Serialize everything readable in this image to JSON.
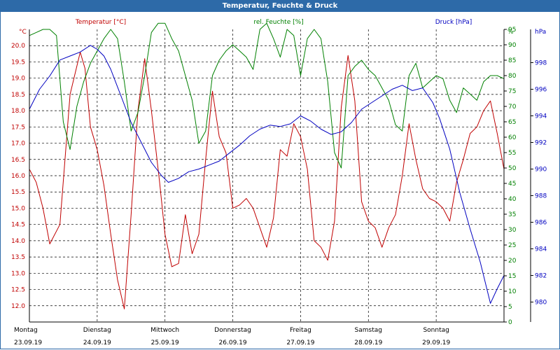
{
  "window": {
    "title": "Temperatur, Feuchte & Druck"
  },
  "colors": {
    "temperature": "#c00000",
    "humidity": "#008000",
    "pressure": "#0000c0",
    "grid": "#000000",
    "text": "#000000"
  },
  "chart_data": {
    "type": "line",
    "title": "Temperatur, Feuchte & Druck",
    "x": {
      "range": [
        0,
        7
      ],
      "ticks": [
        {
          "day": "Montag",
          "date": "23.09.19"
        },
        {
          "day": "Dienstag",
          "date": "24.09.19"
        },
        {
          "day": "Mittwoch",
          "date": "25.09.19"
        },
        {
          "day": "Donnerstag",
          "date": "26.09.19"
        },
        {
          "day": "Freitag",
          "date": "27.09.19"
        },
        {
          "day": "Samstag",
          "date": "28.09.19"
        },
        {
          "day": "Sonntag",
          "date": "29.09.19"
        }
      ]
    },
    "axes": {
      "left": {
        "label": "Temperatur [°C]",
        "unit": "°C",
        "range": [
          11.5,
          20.5
        ],
        "ticks": [
          "20.0",
          "19.5",
          "19.0",
          "18.5",
          "18.0",
          "17.5",
          "17.0",
          "16.5",
          "16.0",
          "15.5",
          "15.0",
          "14.5",
          "14.0",
          "13.5",
          "13.0",
          "12.5",
          "12.0"
        ]
      },
      "middle": {
        "label": "rel. Feuchte [%]",
        "unit": "%",
        "range": [
          0,
          95
        ],
        "ticks": [
          "95",
          "90",
          "85",
          "80",
          "75",
          "70",
          "65",
          "60",
          "55",
          "50",
          "45",
          "40",
          "35",
          "30",
          "25",
          "20",
          "15",
          "10",
          "5",
          "0"
        ]
      },
      "right": {
        "label": "Druck [hPa]",
        "unit": "hPa",
        "range": [
          978.5,
          1000.5
        ],
        "ticks": [
          "998",
          "996",
          "994",
          "992",
          "990",
          "988",
          "986",
          "984",
          "982",
          "980"
        ]
      }
    },
    "series": [
      {
        "name": "Temperatur",
        "axis": "left",
        "x": [
          0,
          0.1,
          0.2,
          0.3,
          0.45,
          0.6,
          0.75,
          0.82,
          0.9,
          1.0,
          1.1,
          1.2,
          1.3,
          1.4,
          1.5,
          1.6,
          1.7,
          1.8,
          1.92,
          2.0,
          2.1,
          2.2,
          2.3,
          2.4,
          2.5,
          2.6,
          2.7,
          2.8,
          2.9,
          3.0,
          3.1,
          3.2,
          3.3,
          3.4,
          3.5,
          3.6,
          3.7,
          3.8,
          3.9,
          4.0,
          4.1,
          4.2,
          4.3,
          4.4,
          4.5,
          4.6,
          4.7,
          4.8,
          4.9,
          5.0,
          5.1,
          5.2,
          5.3,
          5.4,
          5.5,
          5.6,
          5.7,
          5.8,
          5.9,
          6.0,
          6.1,
          6.2,
          6.3,
          6.4,
          6.5,
          6.6,
          6.7,
          6.8,
          6.9,
          7.0
        ],
        "values": [
          16.2,
          15.8,
          15.0,
          13.9,
          14.5,
          18.5,
          19.8,
          19.3,
          17.5,
          16.8,
          15.7,
          14.2,
          12.8,
          11.9,
          14.8,
          18.0,
          19.6,
          18.0,
          15.8,
          14.2,
          13.2,
          13.3,
          14.8,
          13.6,
          14.2,
          16.5,
          18.6,
          17.2,
          16.7,
          15.0,
          15.1,
          15.3,
          15.0,
          14.4,
          13.8,
          14.7,
          16.8,
          16.6,
          17.6,
          17.2,
          16.2,
          14.0,
          13.8,
          13.4,
          14.6,
          18.1,
          19.7,
          18.3,
          15.2,
          14.6,
          14.4,
          13.8,
          14.4,
          14.8,
          16.0,
          17.6,
          16.5,
          15.6,
          15.3,
          15.2,
          15.0,
          14.6,
          15.8,
          16.5,
          17.3,
          17.5,
          18.0,
          18.3,
          17.3,
          16.2
        ]
      },
      {
        "name": "rel. Feuchte",
        "axis": "middle",
        "x": [
          0,
          0.1,
          0.2,
          0.3,
          0.4,
          0.5,
          0.6,
          0.7,
          0.8,
          0.9,
          1.0,
          1.1,
          1.2,
          1.3,
          1.4,
          1.5,
          1.6,
          1.7,
          1.8,
          1.9,
          2.0,
          2.1,
          2.2,
          2.3,
          2.4,
          2.5,
          2.6,
          2.7,
          2.8,
          2.9,
          3.0,
          3.1,
          3.2,
          3.3,
          3.4,
          3.5,
          3.6,
          3.7,
          3.8,
          3.9,
          4.0,
          4.1,
          4.2,
          4.3,
          4.4,
          4.5,
          4.6,
          4.7,
          4.8,
          4.9,
          5.0,
          5.1,
          5.2,
          5.3,
          5.4,
          5.5,
          5.6,
          5.7,
          5.8,
          5.9,
          6.0,
          6.1,
          6.2,
          6.3,
          6.4,
          6.5,
          6.6,
          6.7,
          6.8,
          6.9,
          7.0
        ],
        "values": [
          93,
          94,
          95,
          95,
          93,
          65,
          56,
          70,
          78,
          84,
          88,
          92,
          95,
          92,
          78,
          62,
          68,
          80,
          94,
          97,
          97,
          92,
          88,
          80,
          72,
          58,
          62,
          80,
          85,
          88,
          90,
          88,
          86,
          82,
          95,
          97,
          92,
          86,
          95,
          93,
          80,
          92,
          95,
          92,
          78,
          55,
          50,
          80,
          83,
          85,
          82,
          80,
          76,
          72,
          64,
          62,
          80,
          84,
          76,
          78,
          80,
          79,
          72,
          68,
          76,
          74,
          72,
          78,
          80,
          80,
          79
        ]
      },
      {
        "name": "Druck",
        "axis": "right",
        "x": [
          0,
          0.15,
          0.3,
          0.45,
          0.6,
          0.75,
          0.9,
          1.0,
          1.1,
          1.2,
          1.35,
          1.5,
          1.65,
          1.8,
          1.95,
          2.05,
          2.2,
          2.35,
          2.5,
          2.65,
          2.8,
          2.95,
          3.1,
          3.25,
          3.4,
          3.55,
          3.7,
          3.85,
          4.0,
          4.15,
          4.3,
          4.45,
          4.6,
          4.75,
          4.9,
          5.05,
          5.2,
          5.35,
          5.5,
          5.65,
          5.8,
          5.95,
          6.05,
          6.2,
          6.35,
          6.5,
          6.65,
          6.8,
          6.9,
          7.0
        ],
        "values": [
          994.5,
          996.0,
          997.0,
          998.2,
          998.5,
          998.8,
          999.3,
          999.0,
          998.5,
          997.5,
          995.5,
          993.5,
          992.0,
          990.5,
          989.5,
          989.0,
          989.3,
          989.8,
          990.0,
          990.3,
          990.6,
          991.2,
          991.8,
          992.5,
          993.0,
          993.3,
          993.2,
          993.4,
          994.0,
          993.6,
          993.0,
          992.6,
          992.8,
          993.5,
          994.5,
          995.0,
          995.5,
          996.0,
          996.3,
          995.9,
          996.1,
          995.0,
          993.8,
          991.5,
          988.2,
          985.5,
          983.0,
          979.9,
          981.0,
          982.0
        ]
      }
    ]
  }
}
